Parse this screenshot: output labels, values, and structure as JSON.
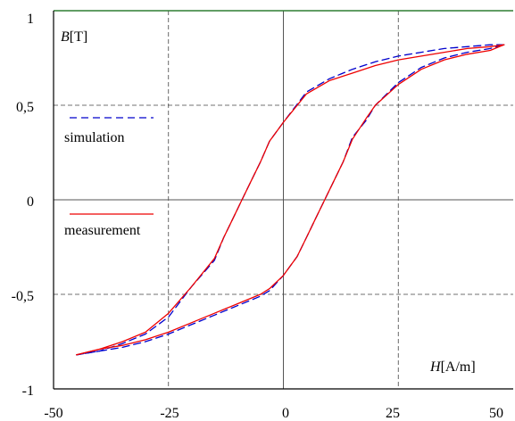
{
  "chart_data": {
    "type": "line",
    "xlabel": {
      "var": "H",
      "unit": "[A/m]"
    },
    "ylabel": {
      "var": "B",
      "unit": "[T]"
    },
    "xlim": [
      -50,
      50
    ],
    "ylim": [
      -1,
      1
    ],
    "x_ticks": [
      "-50",
      "-25",
      "0",
      "25",
      "50"
    ],
    "y_ticks": [
      "1",
      "0,5",
      "0",
      "-0,5",
      "-1"
    ],
    "x_tick_values": [
      -50,
      -25,
      0,
      25,
      50
    ],
    "y_tick_values": [
      1,
      0.5,
      0,
      -0.5,
      -1
    ],
    "grid": true,
    "legend_position": "left",
    "series": [
      {
        "name": "simulation",
        "color": "#0000cc",
        "style": "dashed",
        "branches": [
          [
            [
              -45,
              -0.82
            ],
            [
              -40,
              -0.8
            ],
            [
              -35,
              -0.78
            ],
            [
              -30,
              -0.75
            ],
            [
              -25,
              -0.71
            ],
            [
              -20,
              -0.66
            ],
            [
              -15,
              -0.61
            ],
            [
              -10,
              -0.56
            ],
            [
              -5,
              -0.51
            ],
            [
              -3,
              -0.48
            ],
            [
              0,
              -0.4
            ],
            [
              3,
              -0.3
            ],
            [
              5,
              -0.2
            ],
            [
              7,
              -0.1
            ],
            [
              9,
              0.0
            ],
            [
              11,
              0.1
            ],
            [
              13,
              0.2
            ],
            [
              15,
              0.33
            ],
            [
              18,
              0.42
            ],
            [
              20,
              0.5
            ],
            [
              25,
              0.62
            ],
            [
              30,
              0.7
            ],
            [
              35,
              0.75
            ],
            [
              40,
              0.78
            ],
            [
              45,
              0.8
            ],
            [
              48,
              0.82
            ]
          ],
          [
            [
              48,
              0.82
            ],
            [
              45,
              0.82
            ],
            [
              40,
              0.81
            ],
            [
              35,
              0.8
            ],
            [
              30,
              0.78
            ],
            [
              25,
              0.76
            ],
            [
              20,
              0.73
            ],
            [
              15,
              0.69
            ],
            [
              10,
              0.64
            ],
            [
              5,
              0.57
            ],
            [
              0,
              0.41
            ],
            [
              -3,
              0.31
            ],
            [
              -5,
              0.2
            ],
            [
              -7,
              0.1
            ],
            [
              -9,
              0.0
            ],
            [
              -11,
              -0.1
            ],
            [
              -13,
              -0.2
            ],
            [
              -15,
              -0.32
            ],
            [
              -20,
              -0.46
            ],
            [
              -25,
              -0.62
            ],
            [
              -30,
              -0.71
            ],
            [
              -35,
              -0.76
            ],
            [
              -40,
              -0.8
            ],
            [
              -45,
              -0.82
            ]
          ]
        ]
      },
      {
        "name": "measurement",
        "color": "#ee0000",
        "style": "solid",
        "branches": [
          [
            [
              -45,
              -0.82
            ],
            [
              -40,
              -0.79
            ],
            [
              -35,
              -0.77
            ],
            [
              -30,
              -0.74
            ],
            [
              -25,
              -0.7
            ],
            [
              -20,
              -0.65
            ],
            [
              -15,
              -0.6
            ],
            [
              -10,
              -0.55
            ],
            [
              -5,
              -0.5
            ],
            [
              -3,
              -0.47
            ],
            [
              0,
              -0.4
            ],
            [
              3,
              -0.3
            ],
            [
              5,
              -0.2
            ],
            [
              7,
              -0.1
            ],
            [
              9,
              0.0
            ],
            [
              11,
              0.1
            ],
            [
              13,
              0.2
            ],
            [
              15,
              0.32
            ],
            [
              18,
              0.43
            ],
            [
              20,
              0.5
            ],
            [
              25,
              0.61
            ],
            [
              30,
              0.69
            ],
            [
              35,
              0.74
            ],
            [
              40,
              0.77
            ],
            [
              45,
              0.79
            ],
            [
              48,
              0.82
            ]
          ],
          [
            [
              48,
              0.82
            ],
            [
              45,
              0.81
            ],
            [
              40,
              0.8
            ],
            [
              35,
              0.78
            ],
            [
              30,
              0.76
            ],
            [
              25,
              0.74
            ],
            [
              20,
              0.71
            ],
            [
              15,
              0.67
            ],
            [
              10,
              0.63
            ],
            [
              5,
              0.56
            ],
            [
              0,
              0.41
            ],
            [
              -3,
              0.31
            ],
            [
              -5,
              0.2
            ],
            [
              -7,
              0.1
            ],
            [
              -9,
              0.0
            ],
            [
              -11,
              -0.1
            ],
            [
              -13,
              -0.2
            ],
            [
              -15,
              -0.31
            ],
            [
              -20,
              -0.46
            ],
            [
              -25,
              -0.6
            ],
            [
              -30,
              -0.7
            ],
            [
              -35,
              -0.75
            ],
            [
              -40,
              -0.79
            ],
            [
              -45,
              -0.82
            ]
          ]
        ]
      }
    ]
  }
}
